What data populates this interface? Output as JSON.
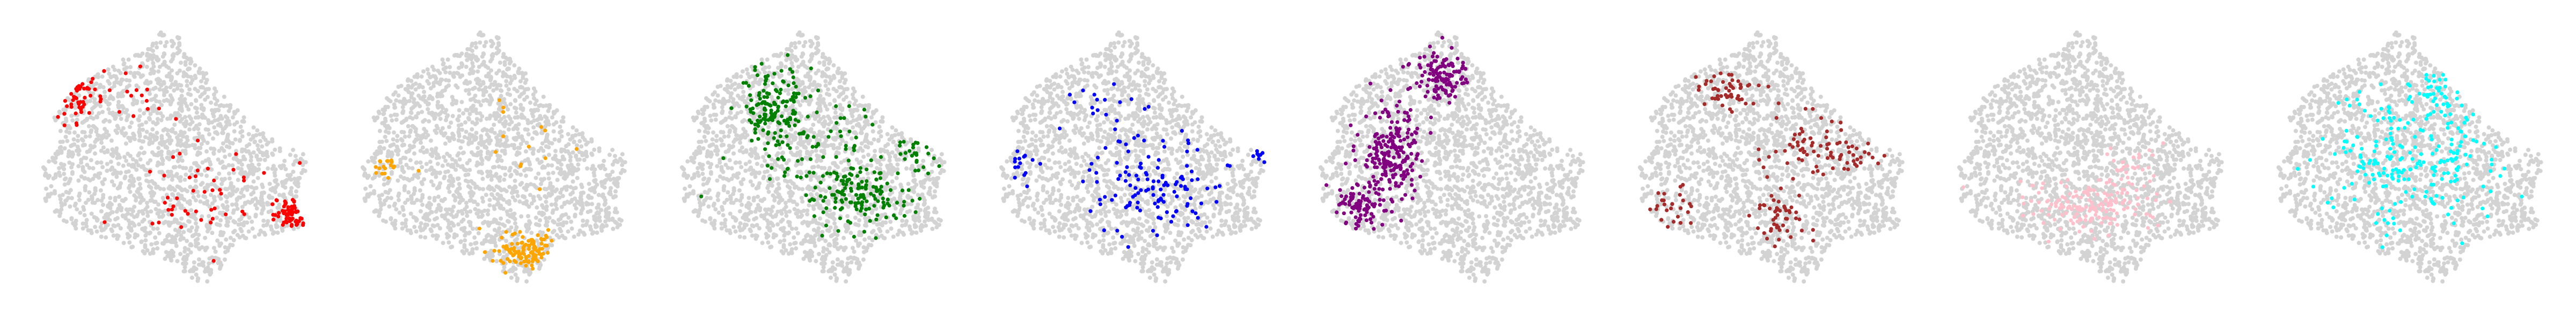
{
  "figure": {
    "background": "#ffffff",
    "background_point_color": "#d3d3d3",
    "axes_visible": false
  },
  "chart_data": [
    {
      "type": "scatter",
      "panel": 1,
      "highlight_color": "#ff0000",
      "highlight_regions": [
        {
          "cx": -0.78,
          "cy": 0.58,
          "sx": 0.18,
          "sy": 0.22,
          "n": 45
        },
        {
          "cx": 0.2,
          "cy": -0.25,
          "sx": 0.55,
          "sy": 0.35,
          "n": 45
        },
        {
          "cx": 0.9,
          "cy": -0.4,
          "sx": 0.12,
          "sy": 0.1,
          "n": 60
        },
        {
          "cx": -0.3,
          "cy": 0.5,
          "sx": 0.25,
          "sy": 0.2,
          "n": 15
        }
      ]
    },
    {
      "type": "scatter",
      "panel": 2,
      "highlight_color": "#ffa500",
      "highlight_regions": [
        {
          "cx": 0.25,
          "cy": -0.72,
          "sx": 0.22,
          "sy": 0.12,
          "n": 110
        },
        {
          "cx": -0.85,
          "cy": -0.05,
          "sx": 0.08,
          "sy": 0.08,
          "n": 18
        },
        {
          "cx": 0.2,
          "cy": 0.05,
          "sx": 0.5,
          "sy": 0.35,
          "n": 14
        }
      ]
    },
    {
      "type": "scatter",
      "panel": 3,
      "highlight_color": "#008000",
      "highlight_regions": [
        {
          "cx": -0.3,
          "cy": 0.4,
          "sx": 0.22,
          "sy": 0.28,
          "n": 150
        },
        {
          "cx": 0.35,
          "cy": -0.28,
          "sx": 0.3,
          "sy": 0.2,
          "n": 130
        },
        {
          "cx": 0.05,
          "cy": 0.05,
          "sx": 0.5,
          "sy": 0.35,
          "n": 70
        },
        {
          "cx": 0.75,
          "cy": 0.05,
          "sx": 0.18,
          "sy": 0.15,
          "n": 25
        }
      ]
    },
    {
      "type": "scatter",
      "panel": 4,
      "highlight_color": "#0000ff",
      "highlight_regions": [
        {
          "cx": 0.15,
          "cy": -0.2,
          "sx": 0.45,
          "sy": 0.3,
          "n": 120
        },
        {
          "cx": -0.85,
          "cy": -0.05,
          "sx": 0.1,
          "sy": 0.12,
          "n": 15
        },
        {
          "cx": 0.95,
          "cy": 0.05,
          "sx": 0.06,
          "sy": 0.06,
          "n": 8
        },
        {
          "cx": -0.2,
          "cy": 0.45,
          "sx": 0.3,
          "sy": 0.25,
          "n": 20
        }
      ]
    },
    {
      "type": "scatter",
      "panel": 5,
      "highlight_color": "#800080",
      "highlight_regions": [
        {
          "cx": -0.45,
          "cy": 0.05,
          "sx": 0.2,
          "sy": 0.3,
          "n": 220
        },
        {
          "cx": -0.1,
          "cy": 0.65,
          "sx": 0.18,
          "sy": 0.15,
          "n": 120
        },
        {
          "cx": -0.7,
          "cy": -0.35,
          "sx": 0.15,
          "sy": 0.15,
          "n": 90
        }
      ]
    },
    {
      "type": "scatter",
      "panel": 6,
      "highlight_color": "#a52a2a",
      "highlight_regions": [
        {
          "cx": -0.35,
          "cy": 0.55,
          "sx": 0.2,
          "sy": 0.12,
          "n": 50
        },
        {
          "cx": 0.25,
          "cy": 0.1,
          "sx": 0.3,
          "sy": 0.2,
          "n": 60
        },
        {
          "cx": 0.05,
          "cy": -0.45,
          "sx": 0.15,
          "sy": 0.25,
          "n": 50
        },
        {
          "cx": -0.75,
          "cy": -0.35,
          "sx": 0.12,
          "sy": 0.12,
          "n": 25
        },
        {
          "cx": 0.65,
          "cy": 0.05,
          "sx": 0.12,
          "sy": 0.1,
          "n": 20
        }
      ]
    },
    {
      "type": "scatter",
      "panel": 7,
      "highlight_color": "#ffc0cb",
      "highlight_regions": [
        {
          "cx": -0.05,
          "cy": -0.35,
          "sx": 0.45,
          "sy": 0.18,
          "n": 160
        },
        {
          "cx": 0.25,
          "cy": -0.05,
          "sx": 0.2,
          "sy": 0.15,
          "n": 30
        }
      ]
    },
    {
      "type": "scatter",
      "panel": 8,
      "highlight_color": "#00ffff",
      "highlight_regions": [
        {
          "cx": 0.0,
          "cy": 0.0,
          "sx": 0.55,
          "sy": 0.4,
          "n": 220
        },
        {
          "cx": 0.2,
          "cy": 0.5,
          "sx": 0.25,
          "sy": 0.2,
          "n": 40
        }
      ]
    }
  ]
}
